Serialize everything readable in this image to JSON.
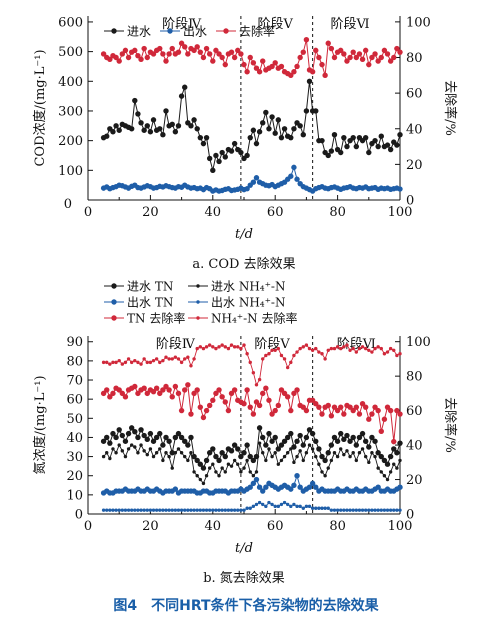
{
  "figure_caption": "图4　不同HRT条件下各污染物的去除效果",
  "colors": {
    "influent": "#1a1a1a",
    "effluent": "#1f5ea8",
    "removal": "#d0283a",
    "axis": "#111111"
  },
  "chart_data": [
    {
      "type": "line",
      "caption": "a. COD 去除效果",
      "xlabel": "t/d",
      "ylabel": "COD浓度/(mg·L⁻¹)",
      "y2label": "去除率/%",
      "xlim": [
        0,
        100
      ],
      "ylim": [
        0,
        620
      ],
      "y2lim": [
        0,
        103.3
      ],
      "xticks": [
        "0",
        "20",
        "40",
        "60",
        "80",
        "100"
      ],
      "yticks": [
        "100",
        "200",
        "300",
        "400",
        "500",
        "600"
      ],
      "y2ticks": [
        "0",
        "20",
        "40",
        "60",
        "80",
        "100"
      ],
      "y_min_label": "0",
      "phase_boundaries": [
        49,
        72
      ],
      "phase_labels": [
        {
          "text": "阶段Ⅳ",
          "x": 30
        },
        {
          "text": "阶段Ⅴ",
          "x": 60
        },
        {
          "text": "阶段Ⅵ",
          "x": 84
        }
      ],
      "x": [
        5,
        6,
        7,
        8,
        9,
        10,
        11,
        12,
        13,
        14,
        15,
        16,
        17,
        18,
        19,
        20,
        21,
        22,
        23,
        24,
        25,
        26,
        27,
        28,
        29,
        30,
        31,
        32,
        33,
        34,
        35,
        36,
        37,
        38,
        39,
        40,
        41,
        42,
        43,
        44,
        45,
        46,
        47,
        48,
        49,
        50,
        51,
        52,
        53,
        54,
        55,
        56,
        57,
        58,
        59,
        60,
        61,
        62,
        63,
        64,
        65,
        66,
        67,
        68,
        69,
        70,
        71,
        72,
        73,
        74,
        75,
        76,
        77,
        78,
        79,
        80,
        81,
        82,
        83,
        84,
        85,
        86,
        87,
        88,
        89,
        90,
        91,
        92,
        93,
        94,
        95,
        96,
        97,
        98,
        99,
        100
      ],
      "series": [
        {
          "name": "进水",
          "axis": "left",
          "style": "influent",
          "values": [
            210,
            215,
            240,
            230,
            250,
            235,
            255,
            250,
            245,
            240,
            335,
            290,
            260,
            235,
            250,
            230,
            270,
            235,
            240,
            220,
            300,
            250,
            255,
            230,
            250,
            350,
            380,
            260,
            250,
            270,
            240,
            210,
            190,
            210,
            140,
            100,
            150,
            130,
            160,
            145,
            170,
            165,
            190,
            170,
            160,
            140,
            150,
            210,
            235,
            190,
            230,
            260,
            295,
            240,
            280,
            225,
            270,
            210,
            240,
            215,
            210,
            240,
            260,
            250,
            220,
            300,
            400,
            300,
            300,
            200,
            200,
            160,
            150,
            165,
            220,
            170,
            160,
            210,
            180,
            200,
            210,
            180,
            210,
            200,
            210,
            160,
            190,
            200,
            180,
            215,
            180,
            185,
            170,
            195,
            185,
            220
          ]
        },
        {
          "name": "出水",
          "axis": "left",
          "style": "effluent",
          "values": [
            40,
            44,
            38,
            42,
            45,
            50,
            48,
            44,
            40,
            46,
            50,
            42,
            40,
            44,
            48,
            45,
            40,
            42,
            46,
            44,
            48,
            45,
            42,
            40,
            45,
            43,
            50,
            44,
            40,
            42,
            38,
            40,
            35,
            42,
            38,
            30,
            34,
            30,
            32,
            36,
            38,
            32,
            34,
            36,
            40,
            35,
            38,
            50,
            60,
            75,
            60,
            55,
            50,
            48,
            52,
            45,
            50,
            55,
            60,
            70,
            80,
            110,
            70,
            55,
            45,
            40,
            35,
            30,
            38,
            42,
            45,
            40,
            38,
            42,
            44,
            40,
            36,
            40,
            42,
            45,
            40,
            38,
            42,
            40,
            44,
            38,
            40,
            42,
            36,
            40,
            38,
            40,
            36,
            38,
            40,
            37
          ]
        },
        {
          "name": "去除率",
          "axis": "right",
          "style": "removal",
          "values": [
            82,
            80,
            79,
            81,
            80,
            78,
            82,
            84,
            80,
            83,
            84,
            81,
            79,
            85,
            80,
            83,
            82,
            84,
            85,
            82,
            78,
            82,
            85,
            82,
            83,
            88,
            86,
            82,
            85,
            84,
            86,
            83,
            80,
            85,
            82,
            78,
            84,
            82,
            80,
            76,
            82,
            83,
            80,
            84,
            82,
            76,
            72,
            80,
            77,
            74,
            72,
            78,
            73,
            74,
            75,
            77,
            74,
            75,
            72,
            71,
            70,
            72,
            75,
            80,
            83,
            90,
            73,
            72,
            84,
            80,
            76,
            70,
            88,
            85,
            80,
            83,
            84,
            82,
            78,
            80,
            83,
            80,
            82,
            79,
            84,
            76,
            80,
            82,
            78,
            80,
            84,
            82,
            78,
            80,
            85,
            83
          ]
        }
      ],
      "legend": [
        "进水",
        "出水",
        "去除率"
      ]
    },
    {
      "type": "line",
      "caption": "b. 氮去除效果",
      "xlabel": "t/d",
      "ylabel": "氮浓度/(mg·L⁻¹)",
      "y2label": "去除率/%",
      "xlim": [
        0,
        100
      ],
      "ylim": [
        0,
        93
      ],
      "y2lim": [
        0,
        103.3
      ],
      "xticks": [
        "0",
        "20",
        "40",
        "60",
        "80",
        "100"
      ],
      "yticks": [
        "0",
        "10",
        "20",
        "30",
        "40",
        "50",
        "60",
        "70",
        "80",
        "90"
      ],
      "y2ticks": [
        "0",
        "20",
        "40",
        "60",
        "80",
        "100"
      ],
      "phase_boundaries": [
        49,
        72
      ],
      "phase_labels": [
        {
          "text": "阶段Ⅳ",
          "x": 28
        },
        {
          "text": "阶段Ⅴ",
          "x": 59
        },
        {
          "text": "阶段Ⅵ",
          "x": 86
        }
      ],
      "x": [
        5,
        6,
        7,
        8,
        9,
        10,
        11,
        12,
        13,
        14,
        15,
        16,
        17,
        18,
        19,
        20,
        21,
        22,
        23,
        24,
        25,
        26,
        27,
        28,
        29,
        30,
        31,
        32,
        33,
        34,
        35,
        36,
        37,
        38,
        39,
        40,
        41,
        42,
        43,
        44,
        45,
        46,
        47,
        48,
        49,
        50,
        51,
        52,
        53,
        54,
        55,
        56,
        57,
        58,
        59,
        60,
        61,
        62,
        63,
        64,
        65,
        66,
        67,
        68,
        69,
        70,
        71,
        72,
        73,
        74,
        75,
        76,
        77,
        78,
        79,
        80,
        81,
        82,
        83,
        84,
        85,
        86,
        87,
        88,
        89,
        90,
        91,
        92,
        93,
        94,
        95,
        96,
        97,
        98,
        99,
        100
      ],
      "series": [
        {
          "name": "进水 TN",
          "axis": "left",
          "style": "influent-tn",
          "values": [
            38,
            40,
            37,
            42,
            40,
            44,
            41,
            38,
            42,
            45,
            43,
            40,
            44,
            41,
            39,
            42,
            38,
            40,
            42,
            36,
            40,
            38,
            32,
            40,
            42,
            40,
            38,
            36,
            40,
            30,
            28,
            26,
            24,
            28,
            32,
            34,
            30,
            28,
            32,
            30,
            34,
            33,
            36,
            34,
            30,
            32,
            36,
            30,
            28,
            30,
            45,
            40,
            36,
            42,
            38,
            40,
            34,
            36,
            38,
            40,
            42,
            35,
            38,
            41,
            36,
            40,
            44,
            42,
            38,
            34,
            30,
            28,
            32,
            36,
            40,
            38,
            42,
            39,
            41,
            38,
            40,
            36,
            40,
            42,
            38,
            35,
            40,
            38,
            32,
            30,
            28,
            26,
            30,
            34,
            32,
            37
          ]
        },
        {
          "name": "进水 NH₄⁺-N",
          "axis": "left",
          "style": "influent-nh",
          "values": [
            30,
            32,
            29,
            34,
            32,
            36,
            33,
            30,
            34,
            36,
            35,
            32,
            36,
            33,
            31,
            34,
            30,
            32,
            34,
            28,
            32,
            30,
            24,
            32,
            34,
            32,
            30,
            28,
            32,
            22,
            20,
            18,
            16,
            20,
            24,
            26,
            22,
            20,
            24,
            22,
            26,
            25,
            28,
            26,
            22,
            24,
            28,
            22,
            20,
            22,
            37,
            32,
            28,
            34,
            30,
            32,
            26,
            28,
            30,
            32,
            34,
            27,
            30,
            33,
            28,
            32,
            36,
            34,
            30,
            26,
            22,
            20,
            24,
            28,
            32,
            30,
            34,
            31,
            33,
            30,
            32,
            28,
            32,
            34,
            30,
            27,
            32,
            30,
            24,
            22,
            20,
            18,
            22,
            26,
            24,
            28
          ]
        },
        {
          "name": "出水 TN",
          "axis": "left",
          "style": "effluent-tn",
          "values": [
            11,
            12,
            11,
            11,
            12,
            12,
            12,
            13,
            12,
            12,
            12,
            13,
            12,
            12,
            13,
            12,
            12,
            13,
            12,
            11,
            12,
            12,
            12,
            13,
            11,
            12,
            12,
            12,
            12,
            12,
            11,
            11,
            12,
            12,
            11,
            11,
            12,
            12,
            12,
            12,
            11,
            12,
            12,
            12,
            13,
            12,
            13,
            14,
            16,
            18,
            14,
            12,
            14,
            16,
            15,
            14,
            13,
            14,
            15,
            14,
            13,
            15,
            20,
            14,
            12,
            13,
            14,
            16,
            14,
            12,
            13,
            12,
            12,
            12,
            12,
            13,
            12,
            12,
            13,
            12,
            12,
            13,
            12,
            12,
            13,
            12,
            12,
            13,
            14,
            12,
            12,
            13,
            12,
            12,
            13,
            14
          ]
        },
        {
          "name": "出水 NH₄⁺-N",
          "axis": "left",
          "style": "effluent-nh",
          "values": [
            2,
            2,
            2,
            2,
            2,
            2,
            2,
            2,
            2,
            2,
            2,
            2,
            2,
            2,
            2,
            2,
            2,
            2,
            2,
            2,
            2,
            2,
            2,
            2,
            2,
            2,
            2,
            2,
            2,
            2,
            2,
            2,
            2,
            2,
            2,
            2,
            2,
            2,
            2,
            2,
            2,
            2,
            2,
            2,
            2,
            2,
            3,
            3,
            4,
            5,
            6,
            5,
            4,
            6,
            5,
            4,
            4,
            5,
            6,
            5,
            4,
            5,
            4,
            4,
            3,
            4,
            4,
            3,
            3,
            3,
            3,
            3,
            3,
            2,
            2,
            2,
            2,
            2,
            2,
            2,
            2,
            2,
            2,
            2,
            2,
            2,
            2,
            2,
            2,
            2,
            2,
            2,
            2,
            2,
            2,
            2
          ]
        },
        {
          "name": "TN 去除率",
          "axis": "right",
          "style": "removal-tn",
          "values": [
            70,
            72,
            68,
            70,
            73,
            72,
            70,
            68,
            72,
            73,
            74,
            70,
            72,
            73,
            70,
            72,
            71,
            73,
            70,
            72,
            74,
            72,
            68,
            74,
            70,
            60,
            72,
            75,
            58,
            70,
            72,
            62,
            56,
            60,
            63,
            66,
            70,
            72,
            68,
            65,
            60,
            70,
            72,
            66,
            65,
            64,
            72,
            62,
            58,
            65,
            63,
            70,
            73,
            66,
            58,
            60,
            63,
            72,
            70,
            68,
            60,
            70,
            72,
            63,
            62,
            60,
            66,
            66,
            64,
            62,
            58,
            62,
            63,
            57,
            62,
            60,
            62,
            58,
            63,
            62,
            60,
            62,
            58,
            64,
            62,
            55,
            58,
            62,
            60,
            48,
            55,
            62,
            60,
            42,
            60,
            58
          ]
        },
        {
          "name": "NH₄⁺-N 去除率",
          "axis": "right",
          "style": "removal-nh",
          "values": [
            88,
            88,
            87,
            88,
            88,
            89,
            87,
            88,
            90,
            88,
            89,
            88,
            87,
            90,
            88,
            88,
            89,
            90,
            88,
            89,
            91,
            90,
            90,
            91,
            90,
            88,
            90,
            91,
            86,
            90,
            96,
            97,
            96,
            97,
            98,
            97,
            96,
            97,
            98,
            97,
            96,
            98,
            97,
            97,
            96,
            98,
            93,
            88,
            82,
            75,
            78,
            90,
            92,
            93,
            95,
            95,
            96,
            92,
            90,
            85,
            88,
            92,
            94,
            96,
            97,
            98,
            96,
            95,
            96,
            94,
            93,
            90,
            95,
            96,
            96,
            97,
            96,
            97,
            98,
            95,
            96,
            94,
            96,
            97,
            96,
            95,
            94,
            96,
            97,
            96,
            93,
            94,
            96,
            95,
            92,
            93
          ]
        }
      ],
      "legend": [
        "进水 TN",
        "进水 NH₄⁺-N",
        "出水 TN",
        "出水 NH₄⁺-N",
        "TN 去除率",
        "NH₄⁺-N 去除率"
      ]
    }
  ]
}
